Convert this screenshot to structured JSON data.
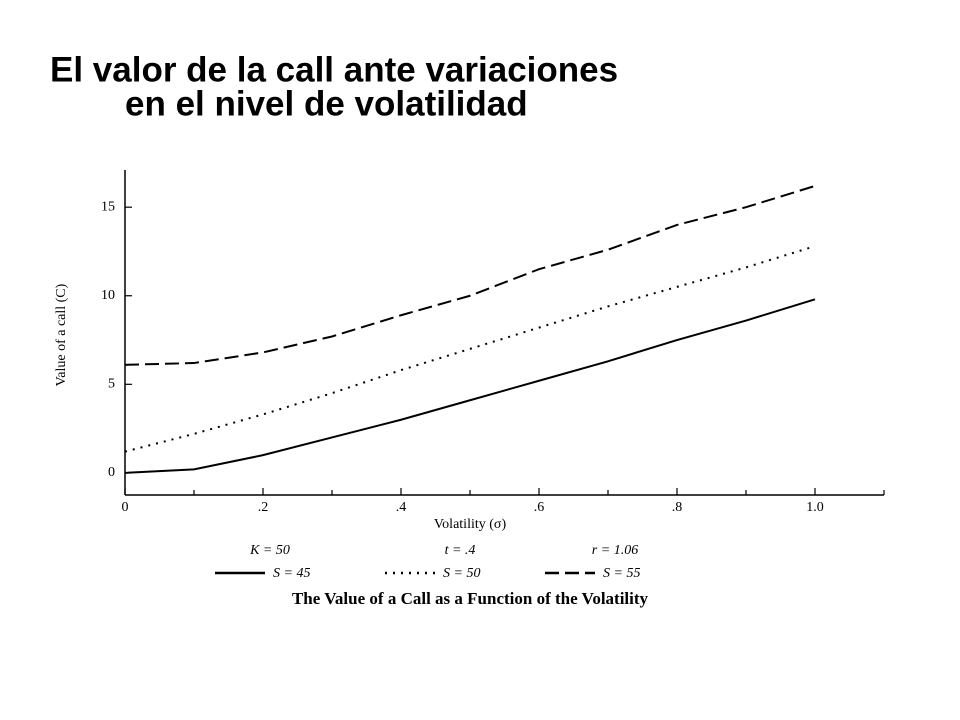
{
  "chart_data": {
    "type": "line",
    "title": [
      "El valor de la call ante variaciones",
      "en el nivel de volatilidad"
    ],
    "x_label": "Volatility (σ)",
    "y_label": "Value of a call (C)",
    "parameters": [
      "K = 50",
      "t = .4",
      "r = 1.06"
    ],
    "caption": "The Value of a Call as a Function of the Volatility",
    "x": [
      0,
      0.1,
      0.2,
      0.3,
      0.4,
      0.5,
      0.6,
      0.7,
      0.8,
      0.9,
      1.0
    ],
    "series": [
      {
        "name": "S = 45",
        "color": "#000000",
        "style": "solid",
        "values": [
          0,
          0.2,
          1.0,
          2.0,
          3.0,
          4.1,
          5.2,
          6.3,
          7.5,
          8.6,
          9.8
        ]
      },
      {
        "name": "S = 50",
        "color": "#000000",
        "style": "dotted",
        "values": [
          1.2,
          2.2,
          3.3,
          4.5,
          5.8,
          7.0,
          8.2,
          9.4,
          10.5,
          11.6,
          12.8
        ]
      },
      {
        "name": "S = 55",
        "color": "#000000",
        "style": "dashed",
        "values": [
          6.1,
          6.2,
          6.8,
          7.7,
          8.9,
          10.0,
          11.5,
          12.6,
          14.0,
          15.0,
          16.2
        ]
      }
    ],
    "xlim": [
      0,
      1.1
    ],
    "xticks": [
      0,
      {
        "value": 0.2,
        "label": ".2"
      },
      {
        "value": 0.4,
        "label": ".4"
      },
      {
        "value": 0.6,
        "label": ".6"
      },
      {
        "value": 0.8,
        "label": ".8"
      },
      {
        "value": 1.0,
        "label": "1.0"
      }
    ],
    "xminor_ticks": [
      0.1,
      0.3,
      0.5,
      0.7,
      0.9,
      1.1
    ],
    "ylim": [
      -1.25,
      17.1
    ],
    "yticks": [
      0,
      5,
      10,
      15
    ],
    "grid": false
  }
}
